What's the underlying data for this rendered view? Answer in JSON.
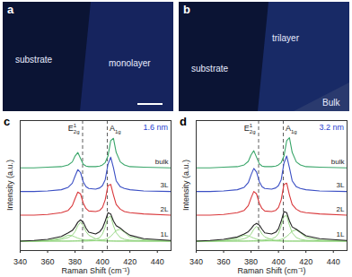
{
  "images": [
    {
      "panel": "a",
      "labels": [
        "substrate",
        "monolayer"
      ]
    },
    {
      "panel": "b",
      "labels": [
        "substrate",
        "trilayer",
        "Bulk"
      ]
    }
  ],
  "chart_data": [
    {
      "type": "line",
      "panel": "c",
      "subtitle": "1.6 nm",
      "x_label": "Raman Shift (cm⁻¹)",
      "y_label": "Intensity (a.u.)",
      "xlim": [
        340,
        450
      ],
      "xticks": [
        340,
        360,
        380,
        400,
        420,
        440
      ],
      "ylim": [
        0,
        11
      ],
      "yticks": [],
      "tick_labels": "x",
      "grid": false,
      "peaks": [
        {
          "base": "E",
          "sup": "1",
          "sub": "2g",
          "x": 385.5
        },
        {
          "base": "A",
          "sub": "1g",
          "x": 403.5
        }
      ],
      "x": [
        340,
        350,
        360,
        370,
        375,
        378,
        380,
        382,
        384,
        386,
        388,
        390,
        395,
        398,
        400,
        402,
        404,
        406,
        408,
        410,
        413,
        416,
        420,
        430,
        450
      ],
      "series": [
        {
          "name": "bulk",
          "color": "#3aa66a",
          "values": [
            7.0,
            7.0,
            7.05,
            7.1,
            7.25,
            7.5,
            8.0,
            8.3,
            7.8,
            7.3,
            7.15,
            7.1,
            7.1,
            7.15,
            7.25,
            7.45,
            8.0,
            9.3,
            9.5,
            8.3,
            7.5,
            7.25,
            7.1,
            7.05,
            7.0
          ]
        },
        {
          "name": "3L",
          "color": "#3b4fc4",
          "values": [
            5.0,
            5.0,
            5.05,
            5.15,
            5.35,
            5.7,
            6.3,
            6.85,
            6.6,
            5.8,
            5.4,
            5.25,
            5.2,
            5.3,
            5.5,
            6.0,
            7.3,
            7.9,
            7.0,
            5.9,
            5.4,
            5.25,
            5.15,
            5.05,
            5.0
          ]
        },
        {
          "name": "2L",
          "color": "#d9373a",
          "values": [
            3.0,
            3.0,
            3.05,
            3.2,
            3.4,
            3.8,
            4.4,
            4.95,
            4.8,
            4.0,
            3.55,
            3.35,
            3.3,
            3.4,
            3.65,
            4.3,
            5.5,
            5.6,
            4.7,
            3.9,
            3.5,
            3.3,
            3.2,
            3.1,
            3.0
          ]
        },
        {
          "name": "1L",
          "color": "#222222",
          "values": [
            0.8,
            0.85,
            0.95,
            1.2,
            1.5,
            1.7,
            2.0,
            2.4,
            2.6,
            2.4,
            1.9,
            1.55,
            1.4,
            1.6,
            1.9,
            2.5,
            3.2,
            3.1,
            2.5,
            2.1,
            1.9,
            1.6,
            1.3,
            1.0,
            0.85
          ]
        }
      ],
      "fits": [
        {
          "color": "#8ed47a",
          "values": [
            0.8,
            0.8,
            0.82,
            0.95,
            1.1,
            1.3,
            1.6,
            2.1,
            2.4,
            2.1,
            1.6,
            1.3,
            1.0,
            0.92,
            0.88,
            0.85,
            0.83,
            0.82,
            0.81,
            0.8,
            0.8,
            0.8,
            0.8,
            0.8,
            0.8
          ]
        },
        {
          "color": "#8ed47a",
          "values": [
            0.8,
            0.8,
            0.8,
            0.8,
            0.8,
            0.81,
            0.82,
            0.83,
            0.84,
            0.85,
            0.87,
            0.9,
            0.95,
            1.1,
            1.4,
            2.0,
            2.8,
            2.9,
            2.1,
            1.5,
            1.1,
            0.95,
            0.88,
            0.82,
            0.8
          ]
        },
        {
          "color": "#8ed47a",
          "values": [
            0.8,
            0.8,
            0.8,
            0.8,
            0.8,
            0.8,
            0.8,
            0.8,
            0.8,
            0.8,
            0.8,
            0.81,
            0.83,
            0.85,
            0.88,
            0.95,
            1.05,
            1.2,
            1.45,
            1.7,
            1.8,
            1.55,
            1.15,
            0.9,
            0.82
          ]
        },
        {
          "color": "#8ed47a",
          "values": [
            0.8,
            0.8,
            0.85,
            1.05,
            1.3,
            1.25,
            1.15,
            1.05,
            0.98,
            0.92,
            0.88,
            0.86,
            0.83,
            0.82,
            0.81,
            0.8,
            0.8,
            0.8,
            0.8,
            0.8,
            0.8,
            0.8,
            0.8,
            0.8,
            0.8
          ]
        }
      ]
    },
    {
      "type": "line",
      "panel": "d",
      "subtitle": "3.2 nm",
      "x_label": "Raman Shift (cm⁻¹)",
      "y_label": "Intensity (a.u.)",
      "xlim": [
        340,
        450
      ],
      "xticks": [
        340,
        360,
        380,
        400,
        420,
        440
      ],
      "ylim": [
        0,
        11
      ],
      "yticks": [],
      "tick_labels": "x",
      "grid": false,
      "peaks": [
        {
          "base": "E",
          "sup": "1",
          "sub": "2g",
          "x": 385.5
        },
        {
          "base": "A",
          "sub": "1g",
          "x": 403.5
        }
      ],
      "x": [
        340,
        350,
        360,
        370,
        375,
        378,
        380,
        382,
        384,
        386,
        388,
        390,
        395,
        398,
        400,
        402,
        404,
        406,
        408,
        410,
        413,
        416,
        420,
        430,
        450
      ],
      "series": [
        {
          "name": "bulk",
          "color": "#3aa66a",
          "values": [
            7.0,
            7.0,
            7.05,
            7.1,
            7.25,
            7.55,
            8.1,
            8.45,
            7.9,
            7.35,
            7.15,
            7.1,
            7.1,
            7.15,
            7.25,
            7.45,
            8.0,
            9.3,
            9.55,
            8.3,
            7.5,
            7.25,
            7.1,
            7.05,
            7.0
          ]
        },
        {
          "name": "3L",
          "color": "#3b4fc4",
          "values": [
            5.0,
            5.0,
            5.05,
            5.15,
            5.35,
            5.75,
            6.4,
            6.95,
            6.65,
            5.85,
            5.4,
            5.25,
            5.2,
            5.3,
            5.5,
            6.0,
            7.4,
            8.0,
            7.0,
            5.9,
            5.4,
            5.25,
            5.15,
            5.05,
            5.0
          ]
        },
        {
          "name": "2L",
          "color": "#d9373a",
          "values": [
            3.0,
            3.0,
            3.05,
            3.2,
            3.4,
            3.8,
            4.45,
            5.0,
            4.8,
            4.0,
            3.55,
            3.35,
            3.3,
            3.4,
            3.65,
            4.3,
            5.6,
            5.7,
            4.7,
            3.9,
            3.5,
            3.3,
            3.2,
            3.1,
            3.0
          ]
        },
        {
          "name": "1L",
          "color": "#222222",
          "values": [
            0.8,
            0.85,
            0.95,
            1.15,
            1.4,
            1.6,
            1.85,
            2.15,
            2.3,
            2.15,
            1.8,
            1.5,
            1.4,
            1.55,
            1.85,
            2.5,
            3.3,
            3.2,
            2.5,
            2.0,
            1.8,
            1.55,
            1.25,
            1.0,
            0.85
          ]
        }
      ],
      "fits": [
        {
          "color": "#8ed47a",
          "values": [
            0.8,
            0.8,
            0.82,
            0.9,
            1.0,
            1.15,
            1.4,
            1.8,
            2.05,
            1.8,
            1.4,
            1.15,
            0.92,
            0.86,
            0.84,
            0.82,
            0.81,
            0.8,
            0.8,
            0.8,
            0.8,
            0.8,
            0.8,
            0.8,
            0.8
          ]
        },
        {
          "color": "#8ed47a",
          "values": [
            0.8,
            0.8,
            0.8,
            0.8,
            0.8,
            0.81,
            0.82,
            0.83,
            0.84,
            0.85,
            0.87,
            0.9,
            0.98,
            1.15,
            1.45,
            2.1,
            2.9,
            2.95,
            2.15,
            1.5,
            1.1,
            0.95,
            0.87,
            0.82,
            0.8
          ]
        },
        {
          "color": "#8ed47a",
          "values": [
            0.8,
            0.8,
            0.8,
            0.8,
            0.8,
            0.8,
            0.8,
            0.8,
            0.8,
            0.8,
            0.8,
            0.81,
            0.83,
            0.85,
            0.88,
            0.95,
            1.05,
            1.2,
            1.4,
            1.65,
            1.75,
            1.5,
            1.12,
            0.88,
            0.82
          ]
        },
        {
          "color": "#8ed47a",
          "values": [
            0.8,
            0.8,
            0.85,
            1.05,
            1.3,
            1.25,
            1.15,
            1.05,
            0.97,
            0.9,
            0.86,
            0.84,
            0.82,
            0.81,
            0.8,
            0.8,
            0.8,
            0.8,
            0.8,
            0.8,
            0.8,
            0.8,
            0.8,
            0.8,
            0.8
          ]
        }
      ]
    }
  ]
}
